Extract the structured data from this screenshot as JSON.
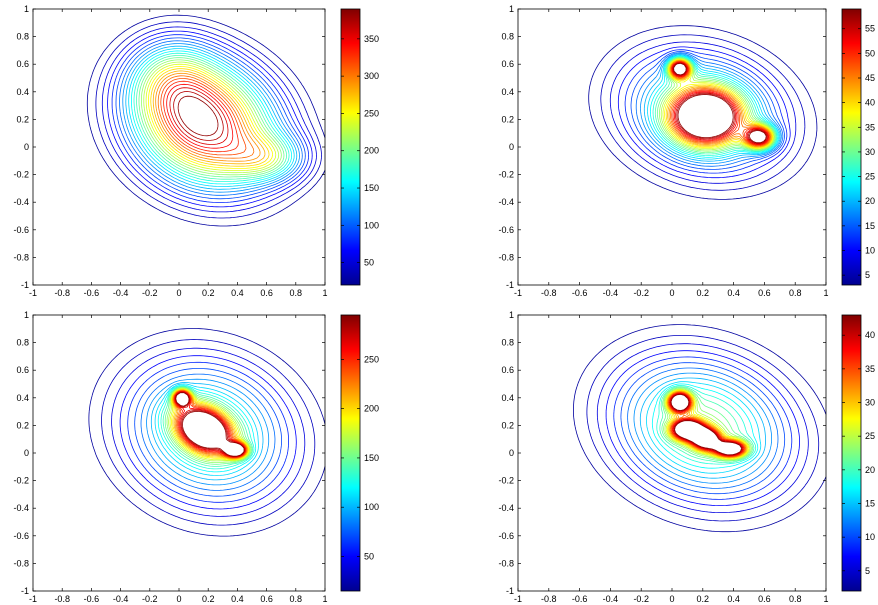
{
  "caption_fragment": "",
  "colormap": "jet",
  "colors": {
    "jet": [
      "#00008f",
      "#0000ff",
      "#00ffff",
      "#ffff00",
      "#ff0000",
      "#800000"
    ],
    "axis": "#000000"
  },
  "chart_data": [
    {
      "type": "contour",
      "xlim": [
        -1,
        1
      ],
      "ylim": [
        -1,
        1
      ],
      "xticks": [
        "-1",
        "-0.8",
        "-0.6",
        "-0.4",
        "-0.2",
        "0",
        "0.2",
        "0.4",
        "0.6",
        "0.8",
        "1"
      ],
      "yticks": [
        "-1",
        "-0.8",
        "-0.6",
        "-0.4",
        "-0.2",
        "0",
        "0.2",
        "0.4",
        "0.6",
        "0.8",
        "1"
      ],
      "colorbar": {
        "min": 20,
        "max": 390,
        "ticks": [
          "50",
          "100",
          "150",
          "200",
          "250",
          "300",
          "350"
        ],
        "tick_values": [
          50,
          100,
          150,
          200,
          250,
          300,
          350
        ]
      },
      "peaks": [
        {
          "x": 0.17,
          "y": 0.17,
          "height": 390,
          "sx": 0.36,
          "sy": 0.3,
          "rot": -0.6
        },
        {
          "x": 0.62,
          "y": -0.08,
          "height": 120,
          "sx": 0.18,
          "sy": 0.12,
          "rot": 0
        },
        {
          "x": -0.05,
          "y": 0.5,
          "height": 100,
          "sx": 0.2,
          "sy": 0.2,
          "rot": 0
        }
      ]
    },
    {
      "type": "contour",
      "xlim": [
        -1,
        1
      ],
      "ylim": [
        -1,
        1
      ],
      "xticks": [
        "-1",
        "-0.8",
        "-0.6",
        "-0.4",
        "-0.2",
        "0",
        "0.2",
        "0.4",
        "0.6",
        "0.8",
        "1"
      ],
      "yticks": [
        "-1",
        "-0.8",
        "-0.6",
        "-0.4",
        "-0.2",
        "0",
        "0.2",
        "0.4",
        "0.6",
        "0.8",
        "1"
      ],
      "colorbar": {
        "min": 3,
        "max": 59,
        "ticks": [
          "5",
          "10",
          "15",
          "20",
          "25",
          "30",
          "35",
          "40",
          "45",
          "50",
          "55"
        ],
        "tick_values": [
          5,
          10,
          15,
          20,
          25,
          30,
          35,
          40,
          45,
          50,
          55
        ]
      },
      "peaks": [
        {
          "x": 0.22,
          "y": 0.22,
          "height": 59,
          "sx": 0.16,
          "sy": 0.14,
          "rot": 0
        },
        {
          "x": 0.05,
          "y": 0.57,
          "height": 55,
          "sx": 0.05,
          "sy": 0.05,
          "rot": 0
        },
        {
          "x": 0.57,
          "y": 0.07,
          "height": 50,
          "sx": 0.07,
          "sy": 0.06,
          "rot": 0
        },
        {
          "x": 0.2,
          "y": 0.25,
          "height": 30,
          "sx": 0.38,
          "sy": 0.3,
          "rot": -0.4
        }
      ]
    },
    {
      "type": "contour",
      "xlim": [
        -1,
        1
      ],
      "ylim": [
        -1,
        1
      ],
      "xticks": [
        "-1",
        "-0.8",
        "-0.6",
        "-0.4",
        "-0.2",
        "0",
        "0.2",
        "0.4",
        "0.6",
        "0.8",
        "1"
      ],
      "yticks": [
        "-1",
        "-0.8",
        "-0.6",
        "-0.4",
        "-0.2",
        "0",
        "0.2",
        "0.4",
        "0.6",
        "0.8",
        "1"
      ],
      "colorbar": {
        "min": 15,
        "max": 295,
        "ticks": [
          "50",
          "100",
          "150",
          "200",
          "250"
        ],
        "tick_values": [
          50,
          100,
          150,
          200,
          250
        ]
      },
      "peaks": [
        {
          "x": 0.17,
          "y": 0.17,
          "height": 295,
          "sx": 0.14,
          "sy": 0.1,
          "rot": -0.6
        },
        {
          "x": 0.02,
          "y": 0.4,
          "height": 270,
          "sx": 0.04,
          "sy": 0.04,
          "rot": 0
        },
        {
          "x": 0.39,
          "y": 0.02,
          "height": 280,
          "sx": 0.05,
          "sy": 0.035,
          "rot": 0
        },
        {
          "x": 0.2,
          "y": 0.15,
          "height": 150,
          "sx": 0.42,
          "sy": 0.36,
          "rot": -0.5
        }
      ]
    },
    {
      "type": "contour",
      "xlim": [
        -1,
        1
      ],
      "ylim": [
        -1,
        1
      ],
      "xticks": [
        "-1",
        "-0.8",
        "-0.6",
        "-0.4",
        "-0.2",
        "0",
        "0.2",
        "0.4",
        "0.6",
        "0.8",
        "1"
      ],
      "yticks": [
        "-1",
        "-0.8",
        "-0.6",
        "-0.4",
        "-0.2",
        "0",
        "0.2",
        "0.4",
        "0.6",
        "0.8",
        "1"
      ],
      "colorbar": {
        "min": 2,
        "max": 43,
        "ticks": [
          "5",
          "10",
          "15",
          "20",
          "25",
          "30",
          "35",
          "40"
        ],
        "tick_values": [
          5,
          10,
          15,
          20,
          25,
          30,
          35,
          40
        ]
      },
      "peaks": [
        {
          "x": 0.05,
          "y": 0.37,
          "height": 43,
          "sx": 0.05,
          "sy": 0.05,
          "rot": 0
        },
        {
          "x": 0.1,
          "y": 0.17,
          "height": 42,
          "sx": 0.07,
          "sy": 0.05,
          "rot": 0
        },
        {
          "x": 0.38,
          "y": 0.03,
          "height": 40,
          "sx": 0.07,
          "sy": 0.04,
          "rot": 0
        },
        {
          "x": 0.22,
          "y": 0.1,
          "height": 38,
          "sx": 0.06,
          "sy": 0.05,
          "rot": 0
        },
        {
          "x": 0.2,
          "y": 0.18,
          "height": 24,
          "sx": 0.42,
          "sy": 0.34,
          "rot": -0.5
        }
      ]
    }
  ]
}
